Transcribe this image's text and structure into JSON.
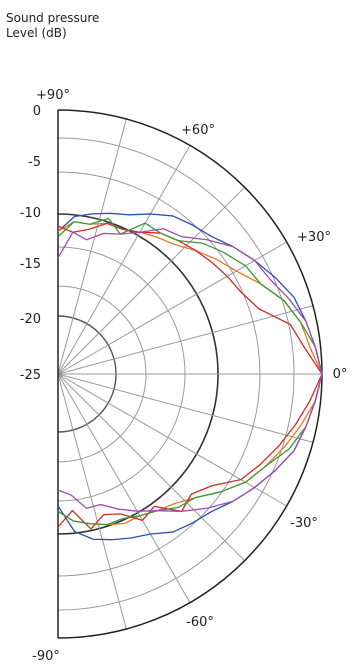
{
  "chart_data": {
    "type": "polar-line",
    "ylabel_lines": [
      "Sound pressure",
      "Level  (dB)"
    ],
    "radial_ticks": [
      {
        "value": 0,
        "label": "0"
      },
      {
        "value": -5,
        "label": "-5"
      },
      {
        "value": -10,
        "label": "-10"
      },
      {
        "value": -15,
        "label": "-15"
      },
      {
        "value": -20,
        "label": "-20"
      },
      {
        "value": -25,
        "label": "-25"
      }
    ],
    "rlim": [
      -25,
      0
    ],
    "angle_range": [
      -90,
      90
    ],
    "angle_ticks": [
      {
        "angle": 90,
        "label": "+90°"
      },
      {
        "angle": 60,
        "label": "+60°"
      },
      {
        "angle": 30,
        "label": "+30°"
      },
      {
        "angle": 0,
        "label": "0°"
      },
      {
        "angle": -30,
        "label": "-30°"
      },
      {
        "angle": -60,
        "label": "-60°"
      },
      {
        "angle": -90,
        "label": "-90°"
      }
    ],
    "grid": true,
    "series": [
      {
        "color": "#2a4fb0",
        "angles": [
          -90,
          -84,
          -78,
          -72,
          -66,
          -60,
          -54,
          -48,
          -42,
          -36,
          -30,
          -24,
          -18,
          -12,
          -6,
          0,
          6,
          12,
          18,
          24,
          30,
          36,
          42,
          48,
          54,
          60,
          66,
          72,
          78,
          84,
          90
        ],
        "values": [
          -12.5,
          -10,
          -9,
          -8.5,
          -8,
          -7.5,
          -6.5,
          -6,
          -5.5,
          -4.5,
          -3.5,
          -2.5,
          -1.5,
          -1,
          -0.5,
          0,
          -0.5,
          -1,
          -1.5,
          -2.5,
          -3.5,
          -4.5,
          -5.5,
          -6,
          -6.5,
          -7.5,
          -8.5,
          -9,
          -9.5,
          -10,
          -11.5
        ]
      },
      {
        "color": "#e07b20",
        "angles": [
          -90,
          -84,
          -78,
          -72,
          -66,
          -60,
          -54,
          -48,
          -42,
          -36,
          -30,
          -24,
          -18,
          -12,
          -6,
          0,
          6,
          12,
          18,
          24,
          30,
          36,
          42,
          48,
          54,
          60,
          66,
          72,
          78,
          84,
          90
        ],
        "values": [
          -12,
          -11,
          -10.5,
          -10,
          -9.5,
          -9.5,
          -9,
          -8.5,
          -7.5,
          -6,
          -4.5,
          -3.5,
          -2.5,
          -1.5,
          -0.5,
          0,
          -1,
          -1.5,
          -2.5,
          -4,
          -5.5,
          -6.5,
          -7.5,
          -8.5,
          -9,
          -9.5,
          -10,
          -10,
          -10.5,
          -10.5,
          -11.5
        ]
      },
      {
        "color": "#d22a2a",
        "angles": [
          -90,
          -84,
          -78,
          -72,
          -66,
          -60,
          -54,
          -48,
          -42,
          -36,
          -30,
          -24,
          -18,
          -12,
          -6,
          0,
          6,
          12,
          18,
          24,
          30,
          36,
          42,
          48,
          54,
          60,
          66,
          72,
          78,
          84,
          90
        ],
        "values": [
          -10.5,
          -12,
          -10,
          -11,
          -10.5,
          -9,
          -9.5,
          -7.5,
          -8,
          -7,
          -5,
          -4,
          -3,
          -2,
          -1,
          0,
          -1.5,
          -2.5,
          -5,
          -6,
          -6.5,
          -7,
          -7.5,
          -8,
          -8.5,
          -9.5,
          -10,
          -10,
          -11,
          -11.5,
          -11
        ]
      },
      {
        "color": "#3a9a3a",
        "angles": [
          -90,
          -84,
          -78,
          -72,
          -66,
          -60,
          -54,
          -48,
          -42,
          -36,
          -30,
          -24,
          -18,
          -12,
          -6,
          0,
          6,
          12,
          18,
          24,
          30,
          36,
          42,
          48,
          54,
          60,
          66,
          72,
          78,
          84,
          90
        ],
        "values": [
          -12,
          -11,
          -10.5,
          -10,
          -10,
          -9.5,
          -9,
          -8,
          -7.5,
          -6,
          -4.5,
          -3.5,
          -2,
          -1,
          -0.5,
          0,
          -0.5,
          -1.5,
          -2.5,
          -4,
          -4.5,
          -5.5,
          -6.5,
          -8,
          -8.5,
          -8.5,
          -10.5,
          -9.5,
          -10.5,
          -10.5,
          -12
        ]
      },
      {
        "color": "#9b4fb0",
        "angles": [
          -90,
          -84,
          -78,
          -72,
          -66,
          -60,
          -54,
          -48,
          -42,
          -36,
          -30,
          -24,
          -18,
          -12,
          -6,
          0,
          6,
          12,
          18,
          24,
          30,
          36,
          42,
          48,
          54,
          60,
          66,
          72,
          78,
          84,
          90
        ],
        "values": [
          -14,
          -13.5,
          -12,
          -12,
          -11,
          -10,
          -9,
          -7.5,
          -6,
          -4.5,
          -3.5,
          -2.5,
          -1.5,
          -1,
          -0.5,
          0,
          -0.5,
          -1,
          -2,
          -3,
          -3.5,
          -4.5,
          -6,
          -7.5,
          -8,
          -9.5,
          -10.5,
          -11,
          -12,
          -11.5,
          -14
        ]
      }
    ]
  }
}
